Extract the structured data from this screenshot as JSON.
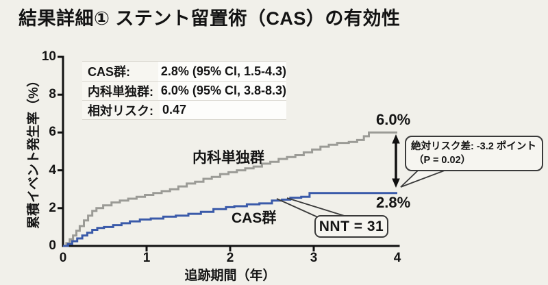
{
  "title": "結果詳細① ステント留置術（CAS）の有効性",
  "colors": {
    "cas": "#3a5aa9",
    "medical": "#9b9b96",
    "background": "#f1f0ea",
    "ink": "#141414"
  },
  "stats_box": {
    "rows": [
      {
        "label": "CAS群:",
        "value": "2.8% (95% CI, 1.5-4.3)"
      },
      {
        "label": "内科単独群:",
        "value": "6.0% (95% CI, 3.8-8.3)"
      },
      {
        "label": "相対リスク:",
        "value": "0.47"
      }
    ]
  },
  "annotations": {
    "medical_curve_label": "内科単独群",
    "cas_curve_label": "CAS群",
    "medical_end_label": "6.0%",
    "cas_end_label": "2.8%",
    "risk_diff_line1": "絶対リスク差: -3.2 ポイント",
    "risk_diff_line2": "（P = 0.02）",
    "nnt_label": "NNT = 31"
  },
  "chart_data": {
    "type": "line",
    "step": true,
    "title": "",
    "xlabel": "追跡期間（年）",
    "ylabel": "累積イベント発生率（%）",
    "xlim": [
      0,
      4
    ],
    "ylim": [
      0,
      10
    ],
    "xticks": [
      0,
      1,
      2,
      3,
      4
    ],
    "yticks": [
      0,
      2,
      4,
      6,
      8,
      10
    ],
    "grid": false,
    "legend_position": "on-curve",
    "series": [
      {
        "name": "内科単独群",
        "color": "#9b9b96",
        "final_value_pct": 6.0,
        "ci_95": "3.8-8.3",
        "points": [
          [
            0,
            0
          ],
          [
            0.04,
            0.15
          ],
          [
            0.08,
            0.35
          ],
          [
            0.12,
            0.55
          ],
          [
            0.16,
            0.8
          ],
          [
            0.2,
            1.05
          ],
          [
            0.25,
            1.35
          ],
          [
            0.3,
            1.6
          ],
          [
            0.35,
            1.85
          ],
          [
            0.4,
            2.0
          ],
          [
            0.48,
            2.15
          ],
          [
            0.58,
            2.3
          ],
          [
            0.68,
            2.4
          ],
          [
            0.78,
            2.5
          ],
          [
            0.88,
            2.6
          ],
          [
            0.98,
            2.7
          ],
          [
            1.08,
            2.8
          ],
          [
            1.18,
            2.9
          ],
          [
            1.28,
            3.0
          ],
          [
            1.38,
            3.15
          ],
          [
            1.48,
            3.3
          ],
          [
            1.58,
            3.4
          ],
          [
            1.68,
            3.55
          ],
          [
            1.78,
            3.65
          ],
          [
            1.88,
            3.8
          ],
          [
            1.98,
            3.9
          ],
          [
            2.08,
            4.0
          ],
          [
            2.18,
            4.1
          ],
          [
            2.28,
            4.2
          ],
          [
            2.38,
            4.35
          ],
          [
            2.48,
            4.45
          ],
          [
            2.58,
            4.6
          ],
          [
            2.68,
            4.7
          ],
          [
            2.78,
            4.8
          ],
          [
            2.88,
            4.95
          ],
          [
            2.98,
            5.1
          ],
          [
            3.08,
            5.25
          ],
          [
            3.18,
            5.35
          ],
          [
            3.28,
            5.45
          ],
          [
            3.42,
            5.5
          ],
          [
            3.52,
            5.6
          ],
          [
            3.6,
            5.8
          ],
          [
            3.66,
            6.0
          ],
          [
            4,
            6.0
          ]
        ]
      },
      {
        "name": "CAS群",
        "color": "#3a5aa9",
        "final_value_pct": 2.8,
        "ci_95": "1.5-4.3",
        "points": [
          [
            0,
            0
          ],
          [
            0.06,
            0.1
          ],
          [
            0.11,
            0.25
          ],
          [
            0.17,
            0.4
          ],
          [
            0.23,
            0.55
          ],
          [
            0.29,
            0.7
          ],
          [
            0.35,
            0.85
          ],
          [
            0.41,
            0.95
          ],
          [
            0.49,
            1.0
          ],
          [
            0.6,
            1.1
          ],
          [
            0.7,
            1.2
          ],
          [
            0.8,
            1.3
          ],
          [
            0.92,
            1.4
          ],
          [
            1.05,
            1.45
          ],
          [
            1.2,
            1.55
          ],
          [
            1.35,
            1.6
          ],
          [
            1.5,
            1.7
          ],
          [
            1.65,
            1.8
          ],
          [
            1.8,
            1.95
          ],
          [
            1.95,
            2.05
          ],
          [
            2.05,
            2.1
          ],
          [
            2.2,
            2.2
          ],
          [
            2.35,
            2.25
          ],
          [
            2.5,
            2.4
          ],
          [
            2.62,
            2.45
          ],
          [
            2.72,
            2.55
          ],
          [
            2.85,
            2.6
          ],
          [
            2.95,
            2.8
          ],
          [
            4,
            2.8
          ]
        ]
      }
    ],
    "annotations": {
      "absolute_risk_difference_points": -3.2,
      "p_value": 0.02,
      "relative_risk": 0.47,
      "nnt": 31
    }
  }
}
